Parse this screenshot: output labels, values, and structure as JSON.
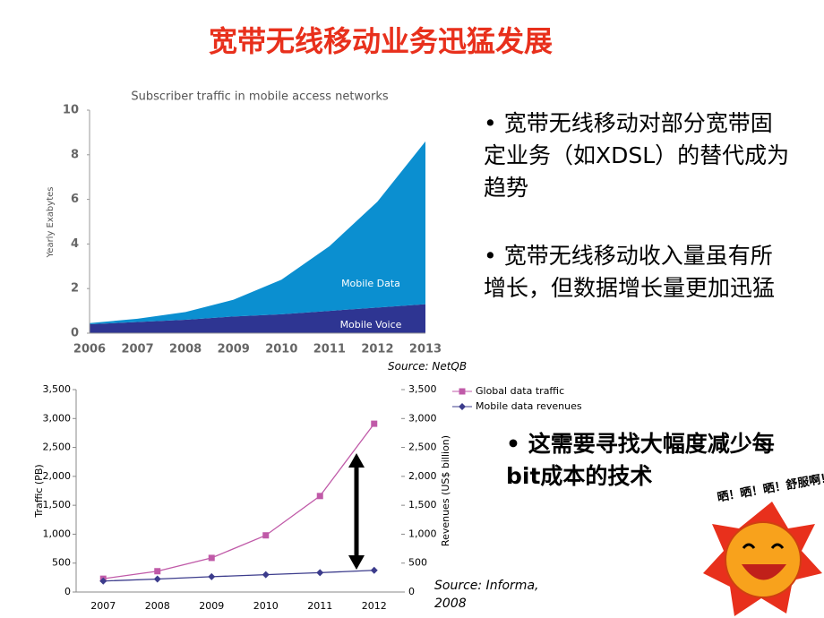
{
  "title": "宽带无线移动业务迅猛发展",
  "bullets": [
    "宽带无线移动对部分宽带固定业务（如XDSL）的替代成为趋势",
    "宽带无线移动收入量虽有所增长，但数据增长量更加迅猛",
    "这需要寻找大幅度减少每bit成本的技术"
  ],
  "sticker_text": "晒！晒！晒！舒服啊！",
  "chart_data": [
    {
      "type": "area",
      "stacked": true,
      "title": "Subscriber traffic in mobile access networks",
      "y_label": "Yearly Exabytes",
      "source": "Source:  NetQB",
      "categories": [
        "2006",
        "2007",
        "2008",
        "2009",
        "2010",
        "2011",
        "2012",
        "2013"
      ],
      "series": [
        {
          "name": "Mobile Voice",
          "color": "#2e3592",
          "values": [
            0.4,
            0.5,
            0.6,
            0.75,
            0.85,
            1.0,
            1.15,
            1.3
          ]
        },
        {
          "name": "Mobile Data",
          "color": "#0b8fd0",
          "values": [
            0.05,
            0.15,
            0.35,
            0.75,
            1.55,
            2.9,
            4.75,
            7.3
          ]
        }
      ],
      "ylim": [
        0,
        10
      ],
      "yticks": [
        0,
        2,
        4,
        6,
        8,
        10
      ]
    },
    {
      "type": "line",
      "y_label": "Traffic (PB)",
      "y2_label": "Revenues (US$ billion)",
      "source": "Source: Informa, 2008",
      "categories": [
        "2007",
        "2008",
        "2009",
        "2010",
        "2011",
        "2012"
      ],
      "series": [
        {
          "name": "Global data traffic",
          "color": "#c05aa8",
          "marker": "square",
          "values": [
            230,
            360,
            590,
            980,
            1660,
            2910
          ]
        },
        {
          "name": "Mobile data revenues",
          "color": "#3c3c8c",
          "marker": "diamond",
          "axis": "y2",
          "values": [
            190,
            225,
            265,
            300,
            335,
            375
          ]
        }
      ],
      "ylim": [
        0,
        3500
      ],
      "yticks": [
        0,
        500,
        {
          "value": 1000,
          "label": "1,000"
        },
        {
          "value": 1500,
          "label": "1,500"
        },
        {
          "value": 2000,
          "label": "2,000"
        },
        {
          "value": 2500,
          "label": "2,500"
        },
        {
          "value": 3000,
          "label": "3,000"
        },
        {
          "value": 3500,
          "label": "3,500"
        }
      ],
      "y2lim": [
        0,
        3500
      ],
      "y2ticks": [
        0,
        500,
        {
          "value": 1000,
          "label": "1,000"
        },
        {
          "value": 1500,
          "label": "1,500"
        },
        {
          "value": 2000,
          "label": "2,000"
        },
        {
          "value": 2500,
          "label": "2,500"
        },
        {
          "value": 3000,
          "label": "3,000"
        },
        {
          "value": 3500,
          "label": "3,500"
        }
      ]
    }
  ]
}
